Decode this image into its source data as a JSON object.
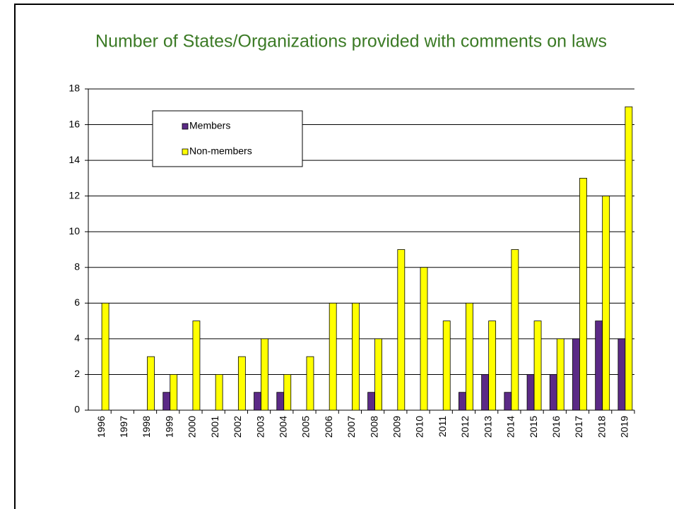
{
  "chart_data": {
    "type": "bar",
    "title": "Number of States/Organizations provided with comments on laws",
    "categories": [
      "1996",
      "1997",
      "1998",
      "1999",
      "2000",
      "2001",
      "2002",
      "2003",
      "2004",
      "2005",
      "2006",
      "2007",
      "2008",
      "2009",
      "2010",
      "2011",
      "2012",
      "2013",
      "2014",
      "2015",
      "2016",
      "2017",
      "2018",
      "2019"
    ],
    "series": [
      {
        "name": "Members",
        "color": "#5b2a86",
        "values": [
          0,
          0,
          0,
          1,
          0,
          0,
          0,
          1,
          1,
          0,
          0,
          0,
          1,
          0,
          0,
          0,
          1,
          2,
          1,
          2,
          2,
          4,
          5,
          4
        ]
      },
      {
        "name": "Non-members",
        "color": "#ffff00",
        "values": [
          6,
          0,
          3,
          2,
          5,
          2,
          3,
          4,
          2,
          3,
          6,
          6,
          4,
          9,
          8,
          5,
          6,
          5,
          9,
          5,
          4,
          13,
          12,
          17
        ]
      }
    ],
    "ylim": [
      0,
      18
    ],
    "yticks": [
      0,
      2,
      4,
      6,
      8,
      10,
      12,
      14,
      16,
      18
    ],
    "grid": true,
    "legend": "upper left"
  }
}
